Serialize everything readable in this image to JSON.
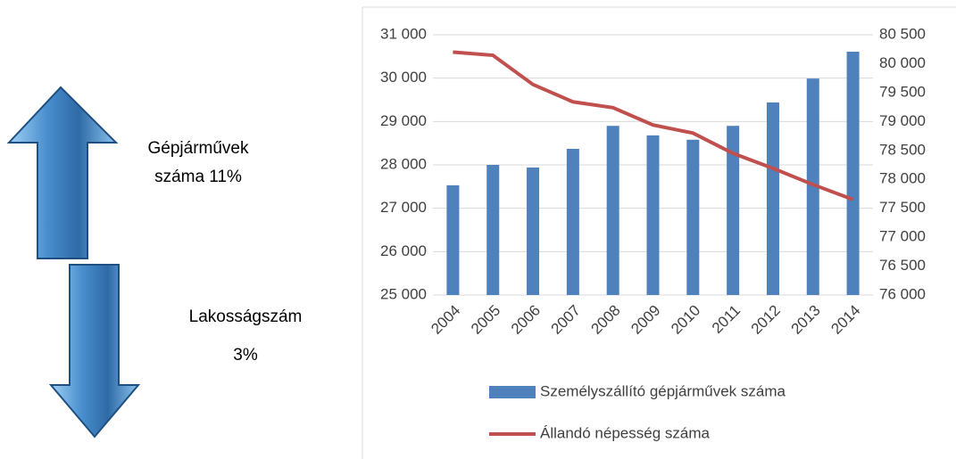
{
  "annotations": [
    {
      "lines": [
        "Gépjárművek",
        "száma 11%"
      ]
    },
    {
      "lines": [
        "Lakosságszám",
        "3%"
      ]
    }
  ],
  "chart_data": {
    "type": "bar-line",
    "categories": [
      "2004",
      "2005",
      "2006",
      "2007",
      "2008",
      "2009",
      "2010",
      "2011",
      "2012",
      "2013",
      "2014"
    ],
    "series": [
      {
        "name": "Személyszállító gépjárművek száma",
        "type": "bar",
        "color": "#4f81bd",
        "axis": "y",
        "values": [
          27530,
          28000,
          27940,
          28370,
          28900,
          28680,
          28580,
          28900,
          29440,
          29990,
          30610
        ]
      },
      {
        "name": "Állandó népesség száma",
        "type": "line",
        "color": "#c0504d",
        "axis": "y2",
        "values": [
          80200,
          80145,
          79640,
          79340,
          79240,
          78940,
          78800,
          78450,
          78190,
          77910,
          77650
        ]
      }
    ],
    "ylim": [
      25000,
      31000
    ],
    "yticks": [
      {
        "value": 25000,
        "label": "25 000"
      },
      {
        "value": 26000,
        "label": "26 000"
      },
      {
        "value": 27000,
        "label": "27 000"
      },
      {
        "value": 28000,
        "label": "28 000"
      },
      {
        "value": 29000,
        "label": "29 000"
      },
      {
        "value": 30000,
        "label": "30 000"
      },
      {
        "value": 31000,
        "label": "31 000"
      }
    ],
    "y2lim": [
      76000,
      80500
    ],
    "y2ticks": [
      {
        "value": 76000,
        "label": "76 000"
      },
      {
        "value": 76500,
        "label": "76 500"
      },
      {
        "value": 77000,
        "label": "77 000"
      },
      {
        "value": 77500,
        "label": "77 500"
      },
      {
        "value": 78000,
        "label": "78 000"
      },
      {
        "value": 78500,
        "label": "78 500"
      },
      {
        "value": 79000,
        "label": "79 000"
      },
      {
        "value": 79500,
        "label": "79 500"
      },
      {
        "value": 80000,
        "label": "80 000"
      },
      {
        "value": 80500,
        "label": "80 500"
      }
    ],
    "grid": true,
    "legend": "bottom"
  }
}
